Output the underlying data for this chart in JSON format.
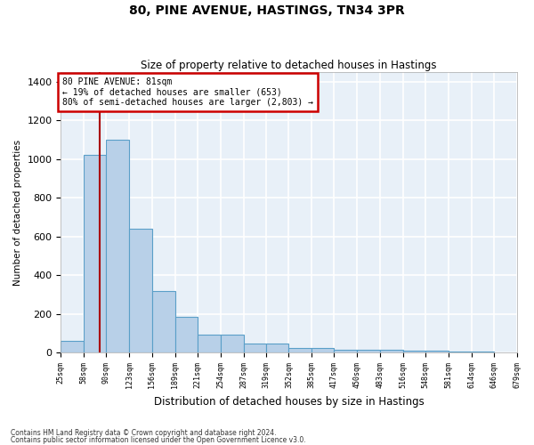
{
  "title": "80, PINE AVENUE, HASTINGS, TN34 3PR",
  "subtitle": "Size of property relative to detached houses in Hastings",
  "xlabel": "Distribution of detached houses by size in Hastings",
  "ylabel": "Number of detached properties",
  "footnote1": "Contains HM Land Registry data © Crown copyright and database right 2024.",
  "footnote2": "Contains public sector information licensed under the Open Government Licence v3.0.",
  "bin_labels": [
    "25sqm",
    "58sqm",
    "90sqm",
    "123sqm",
    "156sqm",
    "189sqm",
    "221sqm",
    "254sqm",
    "287sqm",
    "319sqm",
    "352sqm",
    "385sqm",
    "417sqm",
    "450sqm",
    "483sqm",
    "516sqm",
    "548sqm",
    "581sqm",
    "614sqm",
    "646sqm",
    "679sqm"
  ],
  "bin_edges": [
    25,
    58,
    90,
    123,
    156,
    189,
    221,
    254,
    287,
    319,
    352,
    385,
    417,
    450,
    483,
    516,
    548,
    581,
    614,
    646,
    679
  ],
  "bar_heights": [
    60,
    1020,
    1100,
    640,
    320,
    185,
    95,
    95,
    50,
    50,
    25,
    25,
    18,
    18,
    15,
    13,
    13,
    8,
    8,
    4
  ],
  "bar_color": "#b8d0e8",
  "bar_edge_color": "#5a9fc8",
  "background_color": "#e8f0f8",
  "grid_color": "#ffffff",
  "property_line_x": 81,
  "property_line_color": "#aa0000",
  "annotation_text": "80 PINE AVENUE: 81sqm\n← 19% of detached houses are smaller (653)\n80% of semi-detached houses are larger (2,803) →",
  "annotation_box_color": "#cc0000",
  "ylim": [
    0,
    1450
  ],
  "yticks": [
    0,
    200,
    400,
    600,
    800,
    1000,
    1200,
    1400
  ]
}
